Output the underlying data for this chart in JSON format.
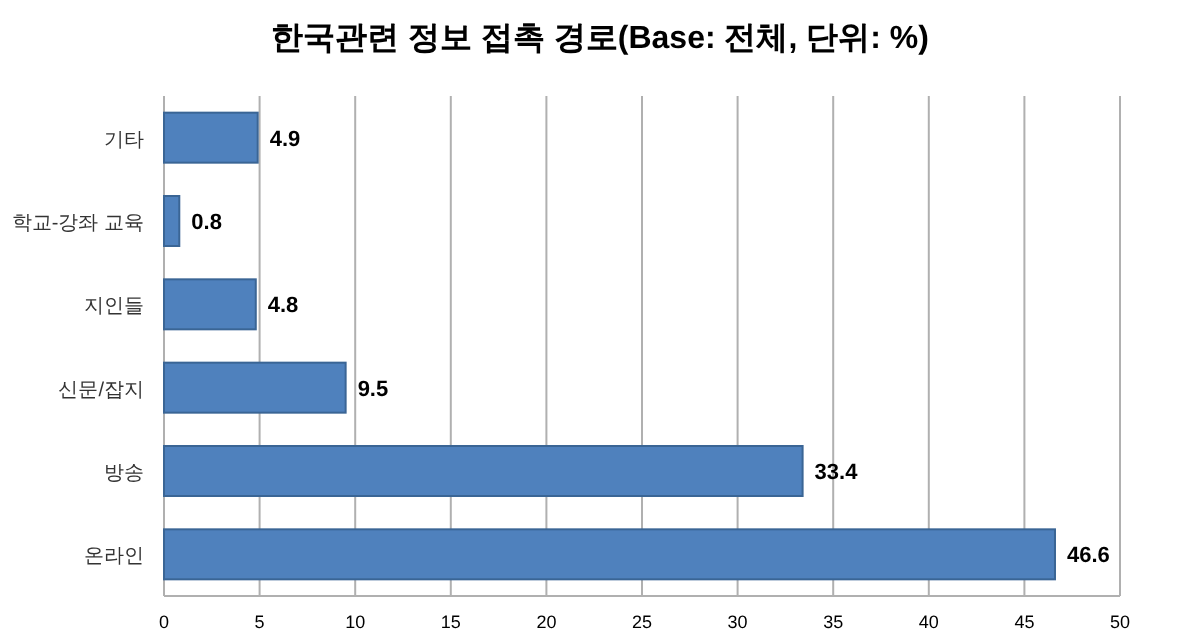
{
  "chart_data": {
    "type": "bar",
    "orientation": "horizontal",
    "title": "한국관련 정보 접촉 경로(Base: 전체, 단위: %)",
    "categories": [
      "기타",
      "학교-강좌 교육",
      "지인들",
      "신문/잡지",
      "방송",
      "온라인"
    ],
    "values": [
      4.9,
      0.8,
      4.8,
      9.5,
      33.4,
      46.6
    ],
    "color": "#4f81bd",
    "xlim": [
      0,
      50
    ],
    "xticks": [
      0,
      5,
      10,
      15,
      20,
      25,
      30,
      35,
      40,
      45,
      50
    ],
    "grid": "x",
    "data_labels": true
  }
}
